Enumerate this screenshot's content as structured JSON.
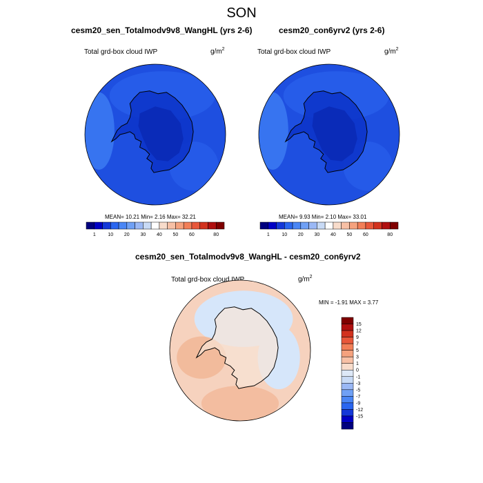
{
  "figure": {
    "title": "SON"
  },
  "colors": {
    "seq_scale": [
      "#00007f",
      "#0000c4",
      "#1438d8",
      "#2a66f0",
      "#4a86f5",
      "#6fa0f5",
      "#9ab8f5",
      "#c8daf5",
      "#ffffff",
      "#f8dccb",
      "#f7c0a5",
      "#f5a27e",
      "#f27f58",
      "#e8573a",
      "#d2321e",
      "#b00f0f",
      "#7f0000"
    ],
    "diff_scale": [
      "#00007f",
      "#0000c4",
      "#1438d8",
      "#2a66f0",
      "#4a86f5",
      "#6fa0f5",
      "#9ab8f5",
      "#c8daf5",
      "#dde8f7",
      "#f8dccb",
      "#f7c0a5",
      "#f5a27e",
      "#f27f58",
      "#e8573a",
      "#d2321e",
      "#b00f0f",
      "#7f0000"
    ],
    "ocean_blue": "#1e4fe0",
    "interior_blue": "#0c33c8",
    "core_blue": "#0a2bb8",
    "diff_blue": "#d6e6fa",
    "diff_orange": "#f6d2be"
  },
  "panels": [
    {
      "title": "cesm20_sen_Totalmodv9v8_WangHL (yrs 2-6)",
      "field": "Total grd-box cloud IWP",
      "units_base": "g/m",
      "units_exp": "2",
      "stats": "MEAN=  10.21  Min=   2.16  Max=  32.21"
    },
    {
      "title": "cesm20_con6yrv2 (yrs 2-6)",
      "field": "Total grd-box cloud IWP",
      "units_base": "g/m",
      "units_exp": "2",
      "stats": "MEAN=   9.93  Min=   2.10  Max=  33.01"
    }
  ],
  "colorbar": {
    "labels": [
      "1",
      "10",
      "20",
      "30",
      "40",
      "50",
      "60",
      "80"
    ]
  },
  "diff_panel": {
    "title": "cesm20_sen_Totalmodv9v8_WangHL - cesm20_con6yrv2",
    "field": "Total grd-box cloud IWP",
    "units_base": "g/m",
    "units_exp": "2",
    "stats": "MIN =  -1.91 MAX =   3.77",
    "colorbar_labels": [
      "15",
      "12",
      "9",
      "7",
      "5",
      "3",
      "1",
      "0",
      "-1",
      "-3",
      "-5",
      "-7",
      "-9",
      "-12",
      "-15"
    ]
  },
  "chart_data": [
    {
      "type": "heatmap",
      "title": "cesm20_sen_Totalmodv9v8_WangHL (yrs 2-6)",
      "field": "Total grd-box cloud IWP",
      "units": "g/m2",
      "projection": "south polar stereographic",
      "contour_levels": [
        1,
        5,
        10,
        15,
        20,
        25,
        30,
        35,
        40,
        45,
        50,
        55,
        60,
        65,
        70,
        80
      ],
      "mean": 10.21,
      "min": 2.16,
      "max": 32.21
    },
    {
      "type": "heatmap",
      "title": "cesm20_con6yrv2 (yrs 2-6)",
      "field": "Total grd-box cloud IWP",
      "units": "g/m2",
      "projection": "south polar stereographic",
      "contour_levels": [
        1,
        5,
        10,
        15,
        20,
        25,
        30,
        35,
        40,
        45,
        50,
        55,
        60,
        65,
        70,
        80
      ],
      "mean": 9.93,
      "min": 2.1,
      "max": 33.01
    },
    {
      "type": "heatmap",
      "title": "cesm20_sen_Totalmodv9v8_WangHL - cesm20_con6yrv2",
      "field": "Total grd-box cloud IWP",
      "units": "g/m2",
      "projection": "south polar stereographic",
      "contour_levels": [
        -15,
        -12,
        -9,
        -7,
        -5,
        -3,
        -1,
        0,
        1,
        3,
        5,
        7,
        9,
        12,
        15
      ],
      "min": -1.91,
      "max": 3.77
    }
  ]
}
